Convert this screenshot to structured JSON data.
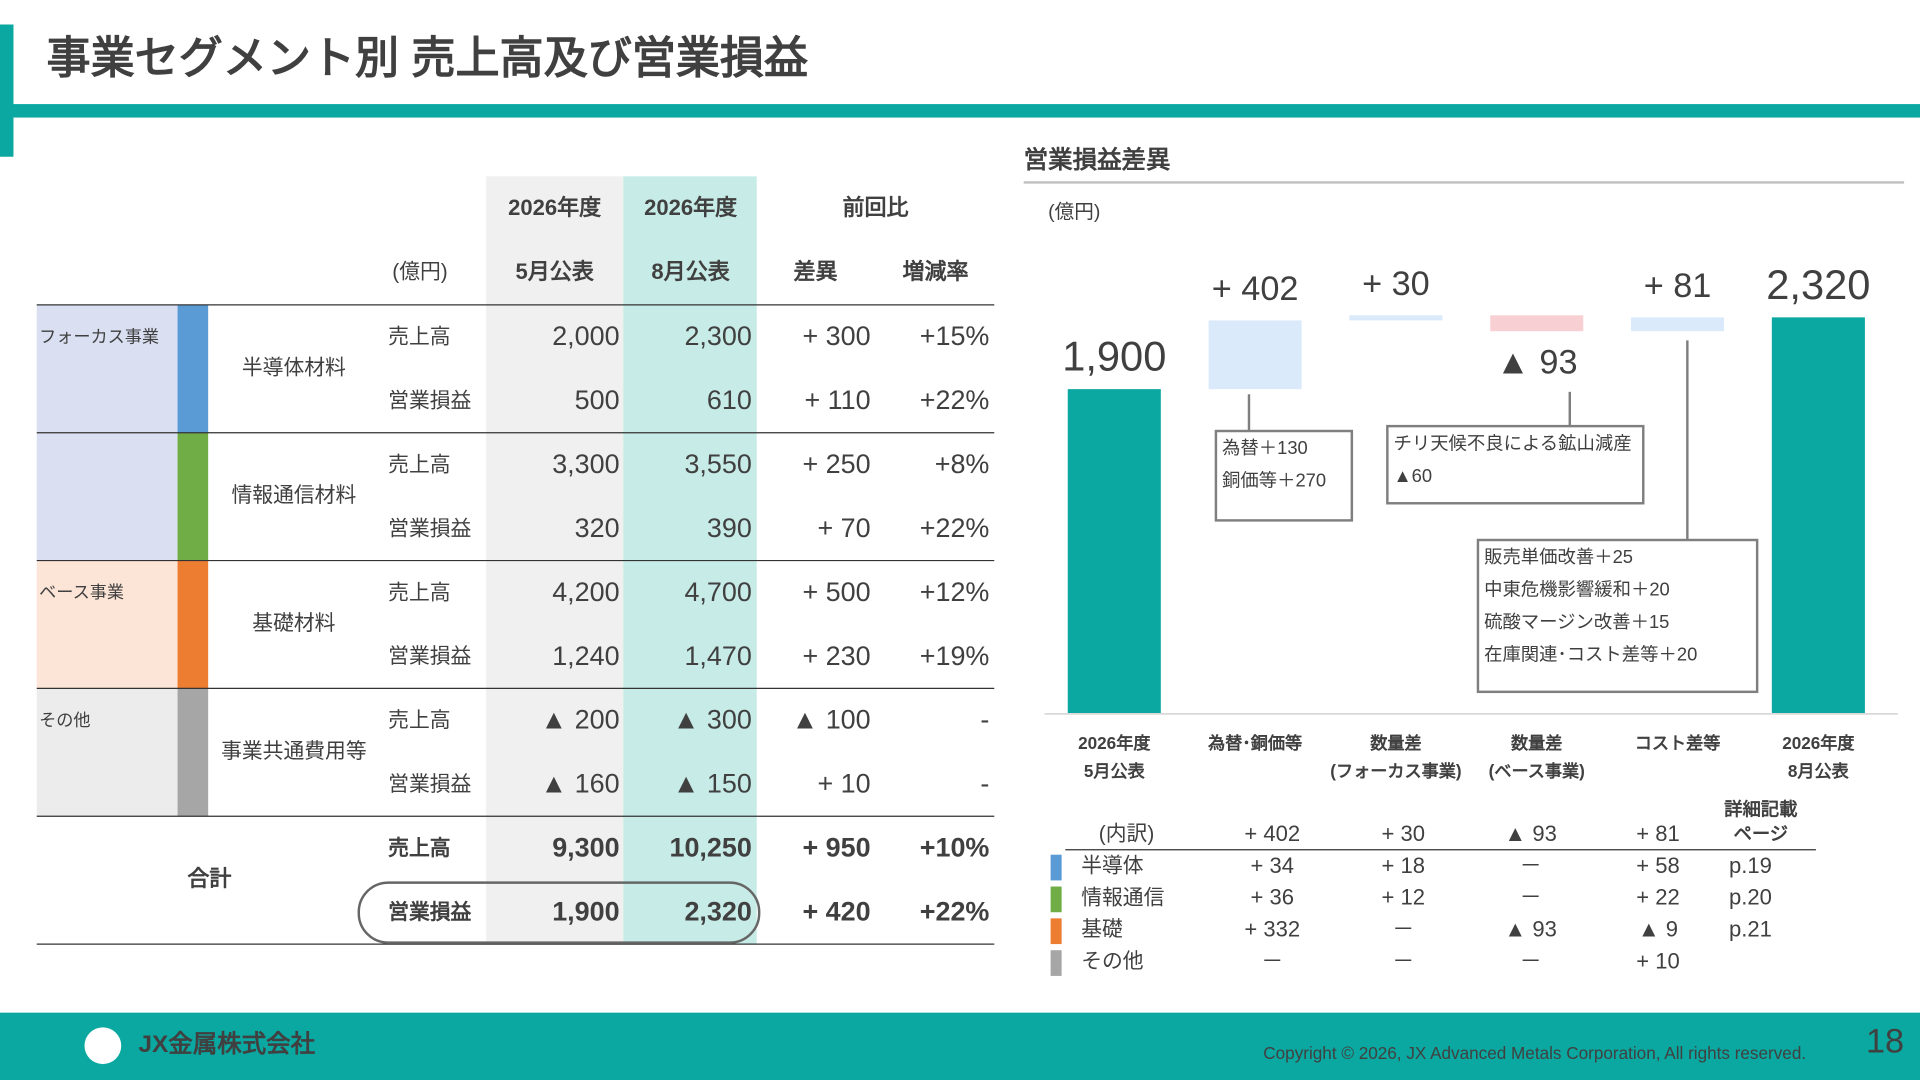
{
  "header": {
    "title": "事業セグメント別 売上高及び営業損益"
  },
  "table": {
    "header": {
      "years": [
        "2026年度",
        "2026年度"
      ],
      "compare": "前回比",
      "unit": "(億円)",
      "columns": [
        "5月公表",
        "8月公表",
        "差異",
        "増減率"
      ]
    },
    "groups": [
      {
        "label": "フォーカス事業",
        "bg": "#dae0f2",
        "segments": [
          {
            "name": "半導体材料",
            "color": "#5b9bd5",
            "rows": [
              {
                "item": "売上高",
                "cells": [
                  "2,000",
                  "2,300",
                  "+ 300",
                  "+15%"
                ]
              },
              {
                "item": "営業損益",
                "cells": [
                  "500",
                  "610",
                  "+ 110",
                  "+22%"
                ]
              }
            ]
          },
          {
            "name": "情報通信材料",
            "color": "#70ad47",
            "rows": [
              {
                "item": "売上高",
                "cells": [
                  "3,300",
                  "3,550",
                  "+ 250",
                  "+8%"
                ]
              },
              {
                "item": "営業損益",
                "cells": [
                  "320",
                  "390",
                  "+ 70",
                  "+22%"
                ]
              }
            ]
          }
        ]
      },
      {
        "label": "ベース事業",
        "bg": "#fce4d6",
        "segments": [
          {
            "name": "基礎材料",
            "color": "#ed7d31",
            "rows": [
              {
                "item": "売上高",
                "cells": [
                  "4,200",
                  "4,700",
                  "+ 500",
                  "+12%"
                ]
              },
              {
                "item": "営業損益",
                "cells": [
                  "1,240",
                  "1,470",
                  "+ 230",
                  "+19%"
                ]
              }
            ]
          }
        ]
      },
      {
        "label": "その他",
        "bg": "#ececec",
        "segments": [
          {
            "name": "事業共通費用等",
            "color": "#a6a6a6",
            "rows": [
              {
                "item": "売上高",
                "cells": [
                  "▲ 200",
                  "▲ 300",
                  "▲ 100",
                  "-"
                ]
              },
              {
                "item": "営業損益",
                "cells": [
                  "▲ 160",
                  "▲ 150",
                  "+ 10",
                  "-"
                ]
              }
            ]
          }
        ]
      }
    ],
    "total": {
      "label": "合計",
      "rows": [
        {
          "item": "売上高",
          "cells": [
            "9,300",
            "10,250",
            "+ 950",
            "+10%"
          ]
        },
        {
          "item": "営業損益",
          "cells": [
            "1,900",
            "2,320",
            "+ 420",
            "+22%"
          ]
        }
      ]
    }
  },
  "chart_data": {
    "type": "waterfall",
    "title": "営業損益差異",
    "unit": "(億円)",
    "categories": [
      [
        "2026年度",
        "5月公表"
      ],
      [
        "為替･銅価等"
      ],
      [
        "数量差",
        "(フォーカス事業)"
      ],
      [
        "数量差",
        "(ベース事業)"
      ],
      [
        "コスト差等"
      ],
      [
        "2026年度",
        "8月公表"
      ]
    ],
    "values": [
      1900,
      402,
      30,
      -93,
      81,
      2320
    ],
    "value_labels": [
      "1,900",
      "+ 402",
      "+ 30",
      "▲ 93",
      "+ 81",
      "2,320"
    ],
    "totals": [
      true,
      false,
      false,
      false,
      false,
      true
    ],
    "total_color": "#0aa8a0",
    "increase_color": "#dbeafb",
    "decrease_color": "#f8d0d4",
    "ylim": [
      0,
      2400
    ],
    "annotations": [
      {
        "lines": [
          "為替＋130",
          "銅価等＋270"
        ]
      },
      {
        "lines": [
          "チリ天候不良による鉱山減産",
          "▲60"
        ]
      },
      {
        "lines": [
          "販売単価改善＋25",
          "中東危機影響緩和＋20",
          "硫酸マージン改善＋15",
          "在庫関連･コスト差等＋20"
        ]
      }
    ]
  },
  "breakdown": {
    "label": "(内訳)",
    "totals": [
      "+ 402",
      "+ 30",
      "▲ 93",
      "+ 81"
    ],
    "page_header": [
      "詳細記載",
      "ページ"
    ],
    "rows": [
      {
        "name": "半導体",
        "color": "#5b9bd5",
        "values": [
          "+ 34",
          "+ 18",
          "－",
          "+ 58"
        ],
        "page": "p.19"
      },
      {
        "name": "情報通信",
        "color": "#70ad47",
        "values": [
          "+ 36",
          "+ 12",
          "－",
          "+ 22"
        ],
        "page": "p.20"
      },
      {
        "name": "基礎",
        "color": "#ed7d31",
        "values": [
          "+ 332",
          "－",
          "▲ 93",
          "▲ 9"
        ],
        "page": "p.21"
      },
      {
        "name": "その他",
        "color": "#a6a6a6",
        "values": [
          "－",
          "－",
          "－",
          "+ 10"
        ],
        "page": ""
      }
    ]
  },
  "footer": {
    "logo": "JX金属株式会社",
    "copyright": "Copyright © 2026, JX Advanced Metals Corporation, All rights reserved.",
    "page": "18"
  }
}
